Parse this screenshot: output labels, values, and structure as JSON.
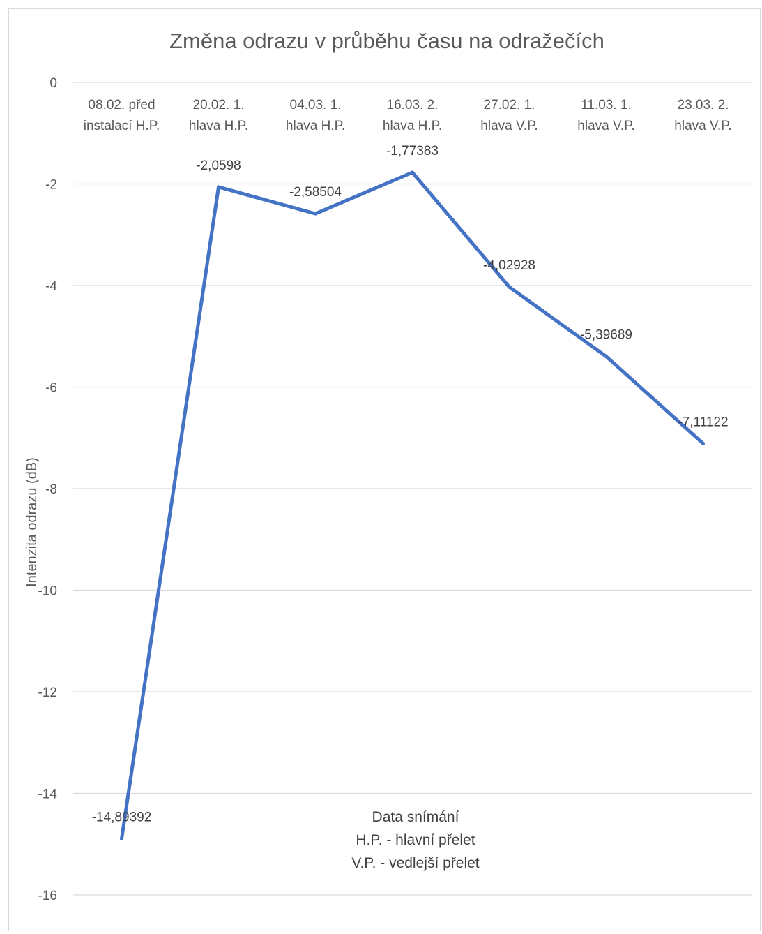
{
  "chart_data": {
    "type": "line",
    "title": "Změna odrazu v průběhu času na odražečích",
    "ylabel": "Intenzita odrazu (dB)",
    "xlabel_lines": [
      "Data snímání",
      "H.P. - hlavní přelet",
      "V.P. - vedlejší přelet"
    ],
    "ylim": [
      -16,
      0
    ],
    "yticks": [
      0,
      -2,
      -4,
      -6,
      -8,
      -10,
      -12,
      -14,
      -16
    ],
    "grid": true,
    "x_axis_position": "top",
    "categories": [
      [
        "08.02. před",
        "instalací H.P."
      ],
      [
        "20.02. 1.",
        "hlava H.P."
      ],
      [
        "04.03. 1.",
        "hlava H.P."
      ],
      [
        "16.03. 2.",
        "hlava H.P."
      ],
      [
        "27.02. 1.",
        "hlava V.P."
      ],
      [
        "11.03. 1.",
        "hlava V.P."
      ],
      [
        "23.03. 2.",
        "hlava V.P."
      ]
    ],
    "series": [
      {
        "values": [
          -14.89392,
          -2.0598,
          -2.58504,
          -1.77383,
          -4.02928,
          -5.39689,
          -7.11122
        ],
        "data_labels": [
          "-14,89392",
          "-2,0598",
          "-2,58504",
          "-1,77383",
          "-4,02928",
          "-5,39689",
          "-7,11122"
        ],
        "color": "#4472c4"
      }
    ]
  }
}
